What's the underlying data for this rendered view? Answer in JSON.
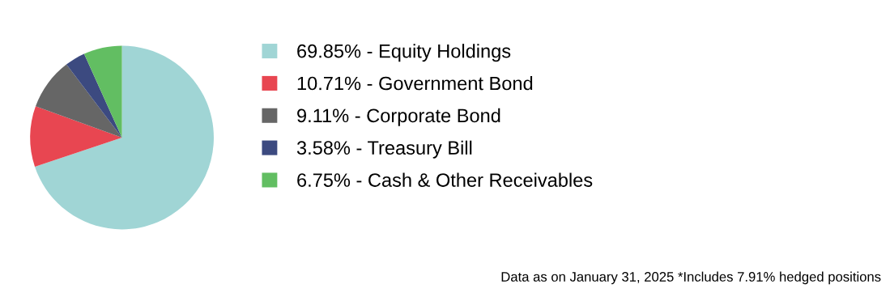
{
  "chart_data": {
    "type": "pie",
    "categories": [
      "Equity Holdings",
      "Government Bond",
      "Corporate Bond",
      "Treasury Bill",
      "Cash & Other Receivables"
    ],
    "values": [
      69.85,
      10.71,
      9.11,
      3.58,
      6.75
    ],
    "value_labels": [
      "69.85%",
      "10.71%",
      "9.11%",
      "3.58%",
      "6.75%"
    ],
    "colors": [
      "#a0d5d5",
      "#e84651",
      "#666666",
      "#3c4a80",
      "#62be62"
    ],
    "legend": "right",
    "annotations": [
      "Data as on January 31, 2025 *Includes 7.91% hedged positions"
    ]
  }
}
